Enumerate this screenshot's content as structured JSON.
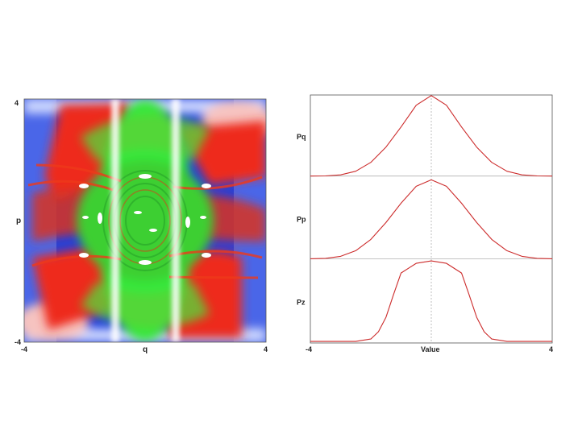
{
  "chart_data": [
    {
      "type": "heatmap",
      "title": "",
      "xlabel": "q",
      "ylabel": "p",
      "xlim": [
        -4,
        4
      ],
      "ylim": [
        -4,
        4
      ],
      "x_ticks": [
        "-4",
        "4"
      ],
      "y_ticks": [
        "4",
        "-4"
      ],
      "colorscale": [
        "#1f3fe0",
        "#27d6f2",
        "#ffffff",
        "#36e83a",
        "#ee2a1a"
      ],
      "grid": false
    },
    {
      "type": "line",
      "title": "",
      "xlabel": "Value",
      "ylabel": "",
      "xlim": [
        -4,
        4
      ],
      "x_ticks": [
        "-4",
        "4"
      ],
      "reference_line_x": 0,
      "colors": {
        "curve": "#cc2b2b",
        "grid": "#b0b0b0"
      },
      "panels": [
        {
          "label": "Pq",
          "x": [
            -4,
            -3.5,
            -3,
            -2.5,
            -2,
            -1.5,
            -1,
            -0.5,
            0,
            0.5,
            1,
            1.5,
            2,
            2.5,
            3,
            3.5,
            4
          ],
          "y": [
            0.0,
            0.002,
            0.015,
            0.06,
            0.17,
            0.36,
            0.61,
            0.88,
            1.0,
            0.88,
            0.61,
            0.36,
            0.17,
            0.06,
            0.015,
            0.002,
            0.0
          ]
        },
        {
          "label": "Pp",
          "x": [
            -4,
            -3.5,
            -3,
            -2.5,
            -2,
            -1.5,
            -1,
            -0.5,
            0,
            0.5,
            1,
            1.5,
            2,
            2.5,
            3,
            3.5,
            4
          ],
          "y": [
            0.0,
            0.005,
            0.03,
            0.1,
            0.24,
            0.45,
            0.69,
            0.9,
            0.98,
            0.9,
            0.69,
            0.45,
            0.24,
            0.1,
            0.03,
            0.005,
            0.0
          ]
        },
        {
          "label": "Pz",
          "x": [
            -4,
            -3,
            -2.5,
            -2,
            -1.75,
            -1.5,
            -1.25,
            -1,
            -0.5,
            0,
            0.5,
            1,
            1.25,
            1.5,
            1.75,
            2,
            2.5,
            3,
            4
          ],
          "y": [
            0.0,
            0.0,
            0.0,
            0.03,
            0.12,
            0.3,
            0.58,
            0.85,
            0.97,
            1.0,
            0.97,
            0.85,
            0.58,
            0.3,
            0.12,
            0.03,
            0.0,
            0.0,
            0.0
          ]
        }
      ]
    }
  ]
}
